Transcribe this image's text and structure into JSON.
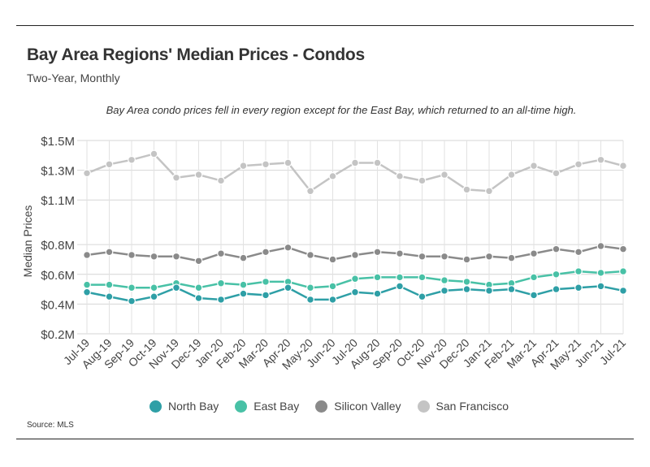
{
  "header": {
    "title": "Bay Area Regions' Median Prices - Condos",
    "subtitle": "Two-Year, Monthly",
    "annotation": "Bay Area condo prices fell in every region except for the East Bay, which returned to an all-time high."
  },
  "footer": {
    "source": "Source:  MLS"
  },
  "colors": {
    "North Bay": "#2e9fa6",
    "East Bay": "#48c1a6",
    "Silicon Valley": "#8a8a8a",
    "San Francisco": "#c4c4c4"
  },
  "chart_data": {
    "type": "line",
    "title": "Bay Area Regions' Median Prices - Condos",
    "subtitle": "Two-Year, Monthly",
    "xlabel": "",
    "ylabel": "Median Prices",
    "ylim": [
      0.2,
      1.5
    ],
    "yticks": [
      0.2,
      0.4,
      0.6,
      0.8,
      1.1,
      1.3,
      1.5
    ],
    "ytick_labels": [
      "$0.2M",
      "$0.4M",
      "$0.6M",
      "$0.8M",
      "$1.1M",
      "$1.3M",
      "$1.5M"
    ],
    "grid": true,
    "legend_position": "bottom",
    "categories": [
      "Jul-19",
      "Aug-19",
      "Sep-19",
      "Oct-19",
      "Nov-19",
      "Dec-19",
      "Jan-20",
      "Feb-20",
      "Mar-20",
      "Apr-20",
      "May-20",
      "Jun-20",
      "Jul-20",
      "Aug-20",
      "Sep-20",
      "Oct-20",
      "Nov-20",
      "Dec-20",
      "Jan-21",
      "Feb-21",
      "Mar-21",
      "Apr-21",
      "May-21",
      "Jun-21",
      "Jul-21"
    ],
    "series": [
      {
        "name": "North Bay",
        "values": [
          0.48,
          0.45,
          0.42,
          0.45,
          0.51,
          0.44,
          0.43,
          0.47,
          0.46,
          0.51,
          0.43,
          0.43,
          0.48,
          0.47,
          0.52,
          0.45,
          0.49,
          0.5,
          0.49,
          0.5,
          0.46,
          0.5,
          0.51,
          0.52,
          0.49
        ]
      },
      {
        "name": "East Bay",
        "values": [
          0.53,
          0.53,
          0.51,
          0.51,
          0.54,
          0.51,
          0.54,
          0.53,
          0.55,
          0.55,
          0.51,
          0.52,
          0.57,
          0.58,
          0.58,
          0.58,
          0.56,
          0.55,
          0.53,
          0.54,
          0.58,
          0.6,
          0.62,
          0.61,
          0.62
        ]
      },
      {
        "name": "Silicon Valley",
        "values": [
          0.73,
          0.75,
          0.73,
          0.72,
          0.72,
          0.69,
          0.74,
          0.71,
          0.75,
          0.78,
          0.73,
          0.7,
          0.73,
          0.75,
          0.74,
          0.72,
          0.72,
          0.7,
          0.72,
          0.71,
          0.74,
          0.77,
          0.75,
          0.79,
          0.77
        ]
      },
      {
        "name": "San Francisco",
        "values": [
          1.28,
          1.34,
          1.37,
          1.41,
          1.25,
          1.27,
          1.23,
          1.33,
          1.34,
          1.35,
          1.16,
          1.26,
          1.35,
          1.35,
          1.26,
          1.23,
          1.27,
          1.17,
          1.16,
          1.27,
          1.33,
          1.28,
          1.34,
          1.37,
          1.33
        ]
      }
    ]
  }
}
